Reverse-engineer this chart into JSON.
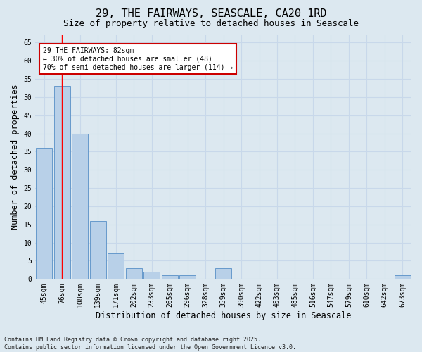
{
  "title": "29, THE FAIRWAYS, SEASCALE, CA20 1RD",
  "subtitle": "Size of property relative to detached houses in Seascale",
  "xlabel": "Distribution of detached houses by size in Seascale",
  "ylabel": "Number of detached properties",
  "categories": [
    "45sqm",
    "76sqm",
    "108sqm",
    "139sqm",
    "171sqm",
    "202sqm",
    "233sqm",
    "265sqm",
    "296sqm",
    "328sqm",
    "359sqm",
    "390sqm",
    "422sqm",
    "453sqm",
    "485sqm",
    "516sqm",
    "547sqm",
    "579sqm",
    "610sqm",
    "642sqm",
    "673sqm"
  ],
  "values": [
    36,
    53,
    40,
    16,
    7,
    3,
    2,
    1,
    1,
    0,
    3,
    0,
    0,
    0,
    0,
    0,
    0,
    0,
    0,
    0,
    1
  ],
  "bar_color": "#b8d0e8",
  "bar_edge_color": "#6699cc",
  "grid_color": "#c8d8ea",
  "background_color": "#dce8f0",
  "red_line_x": 1.0,
  "annotation_text": "29 THE FAIRWAYS: 82sqm\n← 30% of detached houses are smaller (48)\n70% of semi-detached houses are larger (114) →",
  "annotation_box_color": "#ffffff",
  "annotation_box_edge": "#cc0000",
  "ylim": [
    0,
    67
  ],
  "yticks": [
    0,
    5,
    10,
    15,
    20,
    25,
    30,
    35,
    40,
    45,
    50,
    55,
    60,
    65
  ],
  "footer": "Contains HM Land Registry data © Crown copyright and database right 2025.\nContains public sector information licensed under the Open Government Licence v3.0.",
  "title_fontsize": 11,
  "subtitle_fontsize": 9,
  "tick_fontsize": 7,
  "label_fontsize": 8.5,
  "footer_fontsize": 6
}
